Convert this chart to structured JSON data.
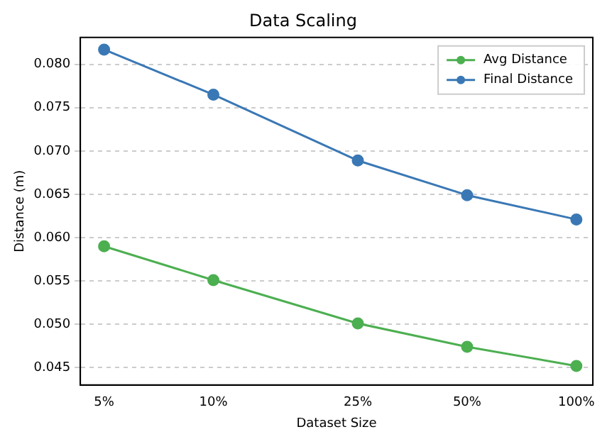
{
  "chart_data": {
    "type": "line",
    "title": "Data Scaling",
    "xlabel": "Dataset Size",
    "ylabel": "Distance (m)",
    "x": [
      5,
      10,
      25,
      50,
      100
    ],
    "series": [
      {
        "name": "Avg Distance",
        "color": "#4caf50",
        "values": [
          0.059,
          0.0551,
          0.0501,
          0.0474,
          0.0452
        ]
      },
      {
        "name": "Final Distance",
        "color": "#3a78b5",
        "values": [
          0.0817,
          0.0765,
          0.0689,
          0.0649,
          0.0621
        ]
      }
    ],
    "xlim": [
      4.3,
      111
    ],
    "ylim": [
      0.043,
      0.0831
    ],
    "xticks": [
      {
        "value": 5,
        "label": "5%"
      },
      {
        "value": 10,
        "label": "10%"
      },
      {
        "value": 25,
        "label": "25%"
      },
      {
        "value": 50,
        "label": "50%"
      },
      {
        "value": 100,
        "label": "100%"
      }
    ],
    "yticks": [
      {
        "value": 0.045,
        "label": "0.045"
      },
      {
        "value": 0.05,
        "label": "0.050"
      },
      {
        "value": 0.055,
        "label": "0.055"
      },
      {
        "value": 0.06,
        "label": "0.060"
      },
      {
        "value": 0.065,
        "label": "0.065"
      },
      {
        "value": 0.07,
        "label": "0.070"
      },
      {
        "value": 0.075,
        "label": "0.075"
      },
      {
        "value": 0.08,
        "label": "0.080"
      }
    ],
    "log": "x",
    "grid": "y",
    "legend": "top right",
    "marker": "circle",
    "line_style": "solid"
  }
}
